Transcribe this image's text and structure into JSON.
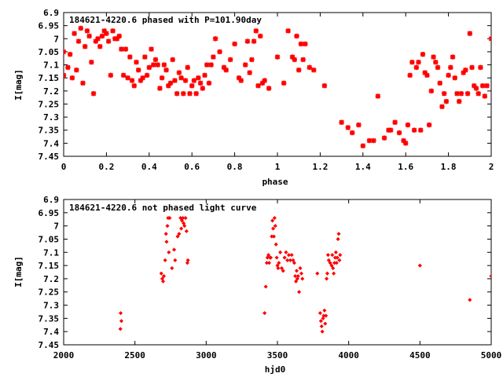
{
  "chart_data": [
    {
      "type": "scatter",
      "title": "184621-4220.6 phased with P=101.90day",
      "xlabel": "phase",
      "ylabel": "I[mag]",
      "xlim": [
        0,
        2
      ],
      "ylim": [
        6.9,
        7.45
      ],
      "y_inverted": true,
      "grid": false,
      "marker": "star",
      "color": "#ff0000",
      "xticks": [
        "0",
        "0.2",
        "0.4",
        "0.6",
        "0.8",
        "1",
        "1.2",
        "1.4",
        "1.6",
        "1.8",
        "2"
      ],
      "yticks": [
        "6.9",
        "6.95",
        "7",
        "7.05",
        "7.1",
        "7.15",
        "7.2",
        "7.25",
        "7.3",
        "7.35",
        "7.4",
        "7.45"
      ],
      "points": [
        [
          0.0,
          7.05
        ],
        [
          0.0,
          7.14
        ],
        [
          0.02,
          7.11
        ],
        [
          0.03,
          7.06
        ],
        [
          0.04,
          7.15
        ],
        [
          0.05,
          6.98
        ],
        [
          0.06,
          7.12
        ],
        [
          0.07,
          7.01
        ],
        [
          0.08,
          6.96
        ],
        [
          0.09,
          7.17
        ],
        [
          0.1,
          7.03
        ],
        [
          0.11,
          6.97
        ],
        [
          0.12,
          6.99
        ],
        [
          0.13,
          7.09
        ],
        [
          0.14,
          7.21
        ],
        [
          0.15,
          7.01
        ],
        [
          0.16,
          7.0
        ],
        [
          0.17,
          7.03
        ],
        [
          0.18,
          6.99
        ],
        [
          0.19,
          6.97
        ],
        [
          0.2,
          6.98
        ],
        [
          0.21,
          7.01
        ],
        [
          0.22,
          7.14
        ],
        [
          0.23,
          6.97
        ],
        [
          0.24,
          7.0
        ],
        [
          0.25,
          7.0
        ],
        [
          0.26,
          6.99
        ],
        [
          0.27,
          7.04
        ],
        [
          0.28,
          7.14
        ],
        [
          0.29,
          7.04
        ],
        [
          0.3,
          7.15
        ],
        [
          0.31,
          7.07
        ],
        [
          0.32,
          7.16
        ],
        [
          0.33,
          7.18
        ],
        [
          0.34,
          7.09
        ],
        [
          0.35,
          7.12
        ],
        [
          0.36,
          7.16
        ],
        [
          0.37,
          7.15
        ],
        [
          0.38,
          7.07
        ],
        [
          0.39,
          7.14
        ],
        [
          0.4,
          7.11
        ],
        [
          0.41,
          7.04
        ],
        [
          0.42,
          7.1
        ],
        [
          0.43,
          7.08
        ],
        [
          0.44,
          7.1
        ],
        [
          0.45,
          7.19
        ],
        [
          0.46,
          7.15
        ],
        [
          0.47,
          7.1
        ],
        [
          0.48,
          7.12
        ],
        [
          0.49,
          7.18
        ],
        [
          0.5,
          7.17
        ],
        [
          0.51,
          7.08
        ],
        [
          0.52,
          7.16
        ],
        [
          0.53,
          7.21
        ],
        [
          0.54,
          7.13
        ],
        [
          0.55,
          7.15
        ],
        [
          0.56,
          7.21
        ],
        [
          0.57,
          7.16
        ],
        [
          0.58,
          7.11
        ],
        [
          0.59,
          7.21
        ],
        [
          0.6,
          7.18
        ],
        [
          0.61,
          7.16
        ],
        [
          0.62,
          7.21
        ],
        [
          0.63,
          7.15
        ],
        [
          0.64,
          7.17
        ],
        [
          0.65,
          7.19
        ],
        [
          0.66,
          7.14
        ],
        [
          0.67,
          7.1
        ],
        [
          0.68,
          7.17
        ],
        [
          0.69,
          7.1
        ],
        [
          0.7,
          7.07
        ],
        [
          0.71,
          7.0
        ],
        [
          0.73,
          7.05
        ],
        [
          0.75,
          7.11
        ],
        [
          0.76,
          7.12
        ],
        [
          0.78,
          7.08
        ],
        [
          0.8,
          7.02
        ],
        [
          0.82,
          7.15
        ],
        [
          0.83,
          7.16
        ],
        [
          0.85,
          7.1
        ],
        [
          0.86,
          7.01
        ],
        [
          0.87,
          7.13
        ],
        [
          0.88,
          7.08
        ],
        [
          0.89,
          7.01
        ],
        [
          0.9,
          6.97
        ],
        [
          0.91,
          7.18
        ],
        [
          0.92,
          6.99
        ],
        [
          0.93,
          7.17
        ],
        [
          0.94,
          7.16
        ],
        [
          0.96,
          7.19
        ],
        [
          1.0,
          7.07
        ],
        [
          1.03,
          7.17
        ],
        [
          1.05,
          6.97
        ],
        [
          1.07,
          7.07
        ],
        [
          1.08,
          7.08
        ],
        [
          1.09,
          6.99
        ],
        [
          1.1,
          7.12
        ],
        [
          1.11,
          7.02
        ],
        [
          1.12,
          7.08
        ],
        [
          1.13,
          7.02
        ],
        [
          1.15,
          7.11
        ],
        [
          1.17,
          7.12
        ],
        [
          1.22,
          7.18
        ],
        [
          1.3,
          7.32
        ],
        [
          1.33,
          7.34
        ],
        [
          1.35,
          7.36
        ],
        [
          1.38,
          7.33
        ],
        [
          1.4,
          7.41
        ],
        [
          1.43,
          7.39
        ],
        [
          1.45,
          7.39
        ],
        [
          1.47,
          7.22
        ],
        [
          1.5,
          7.38
        ],
        [
          1.52,
          7.35
        ],
        [
          1.53,
          7.35
        ],
        [
          1.55,
          7.32
        ],
        [
          1.57,
          7.36
        ],
        [
          1.59,
          7.39
        ],
        [
          1.6,
          7.4
        ],
        [
          1.61,
          7.33
        ],
        [
          1.62,
          7.14
        ],
        [
          1.63,
          7.09
        ],
        [
          1.64,
          7.35
        ],
        [
          1.65,
          7.11
        ],
        [
          1.66,
          7.09
        ],
        [
          1.67,
          7.35
        ],
        [
          1.68,
          7.06
        ],
        [
          1.69,
          7.13
        ],
        [
          1.7,
          7.14
        ],
        [
          1.71,
          7.33
        ],
        [
          1.72,
          7.2
        ],
        [
          1.73,
          7.07
        ],
        [
          1.74,
          7.09
        ],
        [
          1.75,
          7.11
        ],
        [
          1.76,
          7.17
        ],
        [
          1.77,
          7.26
        ],
        [
          1.78,
          7.21
        ],
        [
          1.79,
          7.24
        ],
        [
          1.8,
          7.14
        ],
        [
          1.81,
          7.11
        ],
        [
          1.82,
          7.07
        ],
        [
          1.83,
          7.15
        ],
        [
          1.84,
          7.21
        ],
        [
          1.85,
          7.24
        ],
        [
          1.86,
          7.21
        ],
        [
          1.87,
          7.13
        ],
        [
          1.88,
          7.12
        ],
        [
          1.89,
          7.21
        ],
        [
          1.9,
          6.98
        ],
        [
          1.91,
          7.11
        ],
        [
          1.92,
          7.18
        ],
        [
          1.93,
          7.19
        ],
        [
          1.94,
          7.21
        ],
        [
          1.95,
          7.11
        ],
        [
          1.96,
          7.18
        ],
        [
          1.97,
          7.22
        ],
        [
          1.98,
          7.18
        ],
        [
          2.0,
          7.0
        ]
      ]
    },
    {
      "type": "scatter",
      "title": "184621-4220.6 not phased light curve",
      "xlabel": "hjd0",
      "ylabel": "I[mag]",
      "xlim": [
        2000,
        5000
      ],
      "ylim": [
        6.9,
        7.45
      ],
      "y_inverted": true,
      "grid": false,
      "marker": "diamond",
      "color": "#ff0000",
      "xticks": [
        "2000",
        "2500",
        "3000",
        "3500",
        "4000",
        "4500",
        "5000"
      ],
      "yticks": [
        "6.9",
        "6.95",
        "7",
        "7.05",
        "7.1",
        "7.15",
        "7.2",
        "7.25",
        "7.3",
        "7.35",
        "7.4",
        "7.45"
      ],
      "points": [
        [
          2398,
          7.39
        ],
        [
          2400,
          7.33
        ],
        [
          2405,
          7.36
        ],
        [
          2685,
          7.18
        ],
        [
          2692,
          7.2
        ],
        [
          2698,
          7.21
        ],
        [
          2703,
          7.19
        ],
        [
          2712,
          7.13
        ],
        [
          2718,
          7.03
        ],
        [
          2722,
          7.06
        ],
        [
          2728,
          7.0
        ],
        [
          2733,
          6.97
        ],
        [
          2738,
          7.1
        ],
        [
          2744,
          6.97
        ],
        [
          2760,
          7.16
        ],
        [
          2775,
          7.09
        ],
        [
          2782,
          7.13
        ],
        [
          2800,
          7.04
        ],
        [
          2810,
          7.03
        ],
        [
          2820,
          6.97
        ],
        [
          2825,
          7.01
        ],
        [
          2830,
          6.98
        ],
        [
          2836,
          6.97
        ],
        [
          2842,
          6.99
        ],
        [
          2848,
          7.0
        ],
        [
          2855,
          6.97
        ],
        [
          2862,
          7.02
        ],
        [
          2868,
          7.14
        ],
        [
          2872,
          7.13
        ],
        [
          3410,
          7.33
        ],
        [
          3418,
          7.23
        ],
        [
          3425,
          7.14
        ],
        [
          3430,
          7.12
        ],
        [
          3437,
          7.11
        ],
        [
          3442,
          7.14
        ],
        [
          3448,
          7.12
        ],
        [
          3453,
          7.12
        ],
        [
          3460,
          7.04
        ],
        [
          3465,
          6.98
        ],
        [
          3470,
          7.01
        ],
        [
          3475,
          7.04
        ],
        [
          3480,
          6.97
        ],
        [
          3485,
          7.0
        ],
        [
          3490,
          7.07
        ],
        [
          3495,
          7.12
        ],
        [
          3500,
          7.15
        ],
        [
          3505,
          7.16
        ],
        [
          3510,
          7.14
        ],
        [
          3520,
          7.1
        ],
        [
          3530,
          7.16
        ],
        [
          3540,
          7.17
        ],
        [
          3550,
          7.12
        ],
        [
          3560,
          7.1
        ],
        [
          3570,
          7.13
        ],
        [
          3580,
          7.11
        ],
        [
          3590,
          7.13
        ],
        [
          3600,
          7.11
        ],
        [
          3610,
          7.13
        ],
        [
          3618,
          7.14
        ],
        [
          3625,
          7.19
        ],
        [
          3630,
          7.21
        ],
        [
          3635,
          7.17
        ],
        [
          3640,
          7.2
        ],
        [
          3645,
          7.19
        ],
        [
          3652,
          7.25
        ],
        [
          3660,
          7.16
        ],
        [
          3668,
          7.18
        ],
        [
          3675,
          7.2
        ],
        [
          3780,
          7.18
        ],
        [
          3800,
          7.33
        ],
        [
          3805,
          7.36
        ],
        [
          3810,
          7.38
        ],
        [
          3815,
          7.4
        ],
        [
          3820,
          7.35
        ],
        [
          3825,
          7.34
        ],
        [
          3830,
          7.32
        ],
        [
          3835,
          7.37
        ],
        [
          3840,
          7.34
        ],
        [
          3845,
          7.2
        ],
        [
          3850,
          7.18
        ],
        [
          3855,
          7.11
        ],
        [
          3860,
          7.13
        ],
        [
          3870,
          7.14
        ],
        [
          3880,
          7.15
        ],
        [
          3885,
          7.11
        ],
        [
          3890,
          7.16
        ],
        [
          3895,
          7.18
        ],
        [
          3900,
          7.14
        ],
        [
          3905,
          7.12
        ],
        [
          3910,
          7.1
        ],
        [
          3915,
          7.14
        ],
        [
          3920,
          7.12
        ],
        [
          3925,
          7.05
        ],
        [
          3930,
          7.03
        ],
        [
          3935,
          7.13
        ],
        [
          3940,
          7.11
        ],
        [
          4500,
          7.15
        ],
        [
          4850,
          7.28
        ],
        [
          5000,
          7.19
        ]
      ]
    }
  ]
}
